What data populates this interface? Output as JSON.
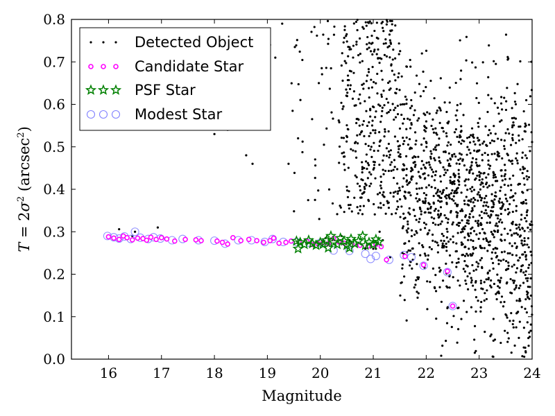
{
  "chart_data": {
    "type": "scatter",
    "title": "",
    "xlabel": "Magnitude",
    "ylabel_parts": [
      "T",
      " = 2",
      "σ",
      "2",
      " (arcsec",
      "2",
      ")"
    ],
    "xlim": [
      15.3,
      24.0
    ],
    "ylim": [
      0.0,
      0.8
    ],
    "xticks": [
      16,
      17,
      18,
      19,
      20,
      21,
      22,
      23,
      24
    ],
    "xtick_labels": [
      "16",
      "17",
      "18",
      "19",
      "20",
      "21",
      "22",
      "23",
      "24"
    ],
    "yticks": [
      0.0,
      0.1,
      0.2,
      0.3,
      0.4,
      0.5,
      0.6,
      0.7,
      0.8
    ],
    "ytick_labels": [
      "0.0",
      "0.1",
      "0.2",
      "0.3",
      "0.4",
      "0.5",
      "0.6",
      "0.7",
      "0.8"
    ],
    "grid": false,
    "legend_position": "top-left",
    "series": [
      {
        "name": "Detected Object",
        "marker": "dot",
        "color": "#000000",
        "points": [
          [
            16.2,
            0.306
          ],
          [
            16.45,
            0.29
          ],
          [
            16.5,
            0.3
          ],
          [
            16.93,
            0.31
          ],
          [
            17.0,
            0.29
          ],
          [
            18.0,
            0.53
          ],
          [
            18.25,
            0.54
          ],
          [
            18.6,
            0.48
          ],
          [
            18.72,
            0.46
          ],
          [
            19.05,
            0.74
          ],
          [
            19.15,
            0.71
          ],
          [
            19.28,
            0.79
          ],
          [
            19.4,
            0.46
          ],
          [
            19.58,
            0.52
          ],
          [
            19.9,
            0.375
          ],
          [
            19.98,
            0.33
          ],
          [
            20.1,
            0.285
          ],
          [
            20.4,
            0.29
          ],
          [
            20.55,
            0.28
          ],
          [
            20.7,
            0.27
          ],
          [
            20.85,
            0.26
          ],
          [
            21.0,
            0.26
          ],
          [
            21.05,
            0.26
          ],
          [
            21.12,
            0.3
          ],
          [
            21.18,
            0.28
          ],
          [
            21.32,
            0.24
          ],
          [
            21.55,
            0.25
          ],
          [
            21.7,
            0.23
          ],
          [
            21.95,
            0.22
          ],
          [
            22.4,
            0.12
          ],
          [
            22.6,
            0.185
          ],
          [
            23.23,
            0.058
          ],
          [
            23.58,
            0.09
          ],
          [
            23.7,
            0.075
          ],
          [
            23.75,
            0.05
          ],
          [
            23.87,
            0.027
          ],
          [
            23.88,
            0.016
          ],
          [
            23.9,
            0.11
          ],
          [
            23.92,
            0.145
          ],
          [
            23.96,
            0.17
          ]
        ],
        "dense_region": {
          "description_x_range": [
            19.3,
            24.0
          ],
          "description_y_range": [
            0.0,
            0.8
          ],
          "approx_count": 1600
        }
      },
      {
        "name": "Candidate Star",
        "marker": "circle",
        "color": "#ff00ff",
        "points": [
          [
            16.0,
            0.288
          ],
          [
            16.1,
            0.285
          ],
          [
            16.2,
            0.282
          ],
          [
            16.28,
            0.29
          ],
          [
            16.35,
            0.286
          ],
          [
            16.45,
            0.281
          ],
          [
            16.55,
            0.285
          ],
          [
            16.65,
            0.284
          ],
          [
            16.72,
            0.28
          ],
          [
            16.8,
            0.287
          ],
          [
            16.9,
            0.282
          ],
          [
            17.0,
            0.286
          ],
          [
            17.1,
            0.283
          ],
          [
            17.25,
            0.278
          ],
          [
            17.45,
            0.282
          ],
          [
            17.65,
            0.281
          ],
          [
            17.75,
            0.279
          ],
          [
            18.05,
            0.278
          ],
          [
            18.15,
            0.275
          ],
          [
            18.25,
            0.271
          ],
          [
            18.35,
            0.286
          ],
          [
            18.5,
            0.279
          ],
          [
            18.65,
            0.282
          ],
          [
            18.8,
            0.279
          ],
          [
            18.93,
            0.275
          ],
          [
            19.05,
            0.279
          ],
          [
            19.12,
            0.285
          ],
          [
            19.22,
            0.273
          ],
          [
            19.35,
            0.275
          ],
          [
            19.45,
            0.278
          ],
          [
            19.6,
            0.275
          ],
          [
            19.75,
            0.277
          ],
          [
            19.85,
            0.27
          ],
          [
            19.95,
            0.272
          ],
          [
            20.05,
            0.275
          ],
          [
            20.15,
            0.272
          ],
          [
            20.25,
            0.284
          ],
          [
            20.35,
            0.276
          ],
          [
            20.45,
            0.273
          ],
          [
            20.6,
            0.27
          ],
          [
            20.75,
            0.268
          ],
          [
            20.9,
            0.266
          ],
          [
            21.05,
            0.27
          ],
          [
            21.15,
            0.265
          ],
          [
            21.25,
            0.234
          ],
          [
            21.6,
            0.242
          ],
          [
            21.95,
            0.222
          ],
          [
            22.4,
            0.207
          ],
          [
            22.5,
            0.125
          ]
        ]
      },
      {
        "name": "PSF Star",
        "marker": "star",
        "color": "#008000",
        "points": [
          [
            19.55,
            0.278
          ],
          [
            19.62,
            0.275
          ],
          [
            19.7,
            0.27
          ],
          [
            19.78,
            0.28
          ],
          [
            19.85,
            0.272
          ],
          [
            19.92,
            0.268
          ],
          [
            20.0,
            0.275
          ],
          [
            20.05,
            0.27
          ],
          [
            20.12,
            0.28
          ],
          [
            20.2,
            0.29
          ],
          [
            20.25,
            0.275
          ],
          [
            20.32,
            0.27
          ],
          [
            20.38,
            0.285
          ],
          [
            20.45,
            0.278
          ],
          [
            20.5,
            0.268
          ],
          [
            20.58,
            0.283
          ],
          [
            20.65,
            0.272
          ],
          [
            20.72,
            0.278
          ],
          [
            20.8,
            0.29
          ],
          [
            20.85,
            0.268
          ],
          [
            20.92,
            0.275
          ],
          [
            21.0,
            0.27
          ],
          [
            21.05,
            0.282
          ],
          [
            21.1,
            0.276
          ],
          [
            20.15,
            0.262
          ],
          [
            19.58,
            0.26
          ],
          [
            20.55,
            0.262
          ]
        ]
      },
      {
        "name": "Modest Star",
        "marker": "open-circle",
        "color": "#8080ff",
        "points": [
          [
            15.98,
            0.29
          ],
          [
            16.1,
            0.287
          ],
          [
            16.2,
            0.284
          ],
          [
            16.3,
            0.289
          ],
          [
            16.42,
            0.283
          ],
          [
            16.5,
            0.3
          ],
          [
            16.6,
            0.286
          ],
          [
            16.75,
            0.283
          ],
          [
            16.85,
            0.287
          ],
          [
            16.98,
            0.284
          ],
          [
            17.2,
            0.28
          ],
          [
            17.4,
            0.283
          ],
          [
            17.7,
            0.28
          ],
          [
            18.0,
            0.279
          ],
          [
            18.2,
            0.272
          ],
          [
            18.45,
            0.28
          ],
          [
            18.7,
            0.28
          ],
          [
            18.95,
            0.276
          ],
          [
            19.1,
            0.283
          ],
          [
            19.3,
            0.276
          ],
          [
            19.55,
            0.276
          ],
          [
            19.8,
            0.274
          ],
          [
            20.0,
            0.274
          ],
          [
            20.25,
            0.256
          ],
          [
            20.55,
            0.255
          ],
          [
            20.85,
            0.248
          ],
          [
            20.95,
            0.236
          ],
          [
            21.05,
            0.243
          ],
          [
            21.3,
            0.234
          ],
          [
            21.58,
            0.245
          ],
          [
            21.72,
            0.24
          ],
          [
            21.95,
            0.22
          ],
          [
            22.4,
            0.205
          ],
          [
            22.5,
            0.125
          ]
        ]
      }
    ]
  }
}
